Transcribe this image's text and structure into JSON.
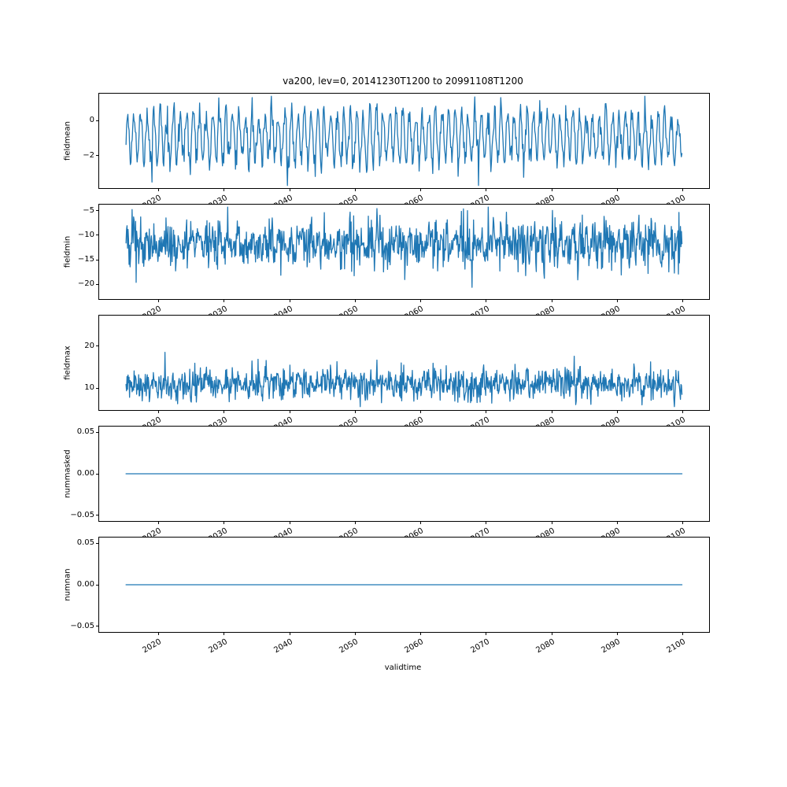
{
  "chart_data": {
    "type": "line",
    "title": "va200, lev=0, 20141230T1200 to 20991108T1200",
    "xlabel": "validtime",
    "line_color": "#1f77b4",
    "grid": false,
    "legend": null,
    "xlim": [
      2010.9,
      2104.0
    ],
    "x_range": [
      2015.0,
      2099.86
    ],
    "xticks": [
      2020,
      2030,
      2040,
      2050,
      2060,
      2070,
      2080,
      2090,
      2100
    ],
    "xtick_labels": [
      "2020",
      "2030",
      "2040",
      "2050",
      "2060",
      "2070",
      "2080",
      "2090",
      "2100"
    ],
    "subplots": [
      {
        "ylabel": "fieldmean",
        "ylim": [
          -3.85,
          1.55
        ],
        "ytick_vals": [
          0,
          -2
        ],
        "ytick_labels": [
          "0",
          "−2"
        ],
        "series": {
          "kind": "seasonal_noise",
          "n": 900,
          "baseline": -0.9,
          "seasonal_amplitude": 1.35,
          "period_years": 1,
          "noise_sd": 0.4,
          "spike_prob": 0.012,
          "spike_scale": -1.3,
          "approx_range": [
            -3.7,
            1.4
          ],
          "seed": 11,
          "description": "Annual oscillation of the field mean between about +1 and −3, mean ≈ −0.9"
        }
      },
      {
        "ylabel": "fieldmin",
        "ylim": [
          -23.0,
          -3.8
        ],
        "ytick_vals": [
          -5,
          -10,
          -15,
          -20
        ],
        "ytick_labels": [
          "−5",
          "−10",
          "−15",
          "−20"
        ],
        "series": {
          "kind": "seasonal_noise",
          "n": 1100,
          "baseline": -11.8,
          "seasonal_amplitude": 1.2,
          "period_years": 1,
          "noise_sd": 2.4,
          "spike_prob": 0.01,
          "spike_scale": -3.5,
          "approx_range": [
            -22.4,
            -4.3
          ],
          "seed": 22,
          "description": "Noisy field minimum around −12, excursions from about −5 down to −22"
        }
      },
      {
        "ylabel": "fieldmax",
        "ylim": [
          4.8,
          27.2
        ],
        "ytick_vals": [
          10,
          20
        ],
        "ytick_labels": [
          "10",
          "20"
        ],
        "series": {
          "kind": "seasonal_noise",
          "n": 1100,
          "baseline": 11.0,
          "seasonal_amplitude": 0.9,
          "period_years": 1,
          "noise_sd": 1.9,
          "spike_prob": 0.008,
          "spike_scale": 6.5,
          "approx_range": [
            5.6,
            26.3
          ],
          "seed": 33,
          "description": "Noisy field maximum around 11, occasional spikes up to ≈26"
        }
      },
      {
        "ylabel": "nummasked",
        "ylim": [
          -0.0571,
          0.0571
        ],
        "ytick_vals": [
          0.05,
          0.0,
          -0.05
        ],
        "ytick_labels": [
          "0.05",
          "0.00",
          "−0.05"
        ],
        "series": {
          "kind": "constant",
          "value": 0.0,
          "description": "Number of masked points is 0 for the whole period"
        }
      },
      {
        "ylabel": "numnan",
        "ylim": [
          -0.0571,
          0.0571
        ],
        "ytick_vals": [
          0.05,
          0.0,
          -0.05
        ],
        "ytick_labels": [
          "0.05",
          "0.00",
          "−0.05"
        ],
        "series": {
          "kind": "constant",
          "value": 0.0,
          "description": "Number of NaN points is 0 for the whole period"
        }
      }
    ]
  }
}
